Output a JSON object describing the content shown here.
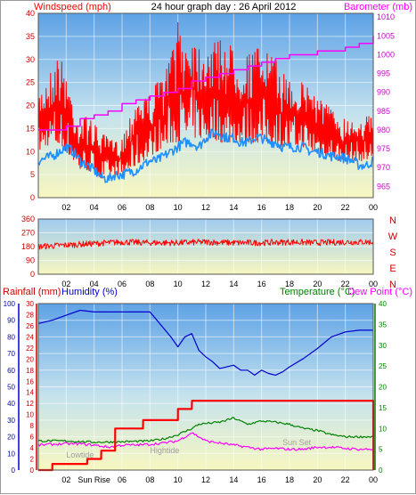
{
  "chart_data": [
    {
      "type": "line",
      "title": "24 hour graph day : 26 April 2012",
      "left_axis_label": "Windspeed (mph)",
      "right_axis_label": "Barometer (mb)",
      "left_ylim": [
        0,
        40
      ],
      "left_ticks": [
        "0",
        "5",
        "10",
        "15",
        "20",
        "25",
        "30",
        "35",
        "40"
      ],
      "right_ylim": [
        962,
        1011
      ],
      "right_ticks": [
        "965",
        "970",
        "975",
        "980",
        "985",
        "990",
        "995",
        "1000",
        "1005",
        "1010"
      ],
      "x_ticks": [
        "02",
        "04",
        "06",
        "08",
        "10",
        "12",
        "14",
        "16",
        "18",
        "20",
        "22",
        "00"
      ],
      "colors": {
        "gust": "#ff0000",
        "average": "#1e90ff",
        "barometer": "#ff00ff"
      },
      "series": {
        "gust_envelope": {
          "x": [
            0.0,
            0.5,
            1.0,
            1.5,
            2.0,
            2.5,
            3.0,
            3.5,
            4.0,
            4.5,
            5.0,
            5.5,
            6.0,
            6.5,
            7.0,
            7.5,
            8.0,
            8.5,
            9.0,
            9.5,
            10.0,
            10.5,
            11.0,
            11.5,
            12.0,
            12.5,
            13.0,
            13.5,
            14.0,
            14.5,
            15.0,
            15.5,
            16.0,
            16.5,
            17.0,
            17.5,
            18.0,
            18.5,
            19.0,
            19.5,
            20.0,
            20.5,
            21.0,
            21.5,
            22.0,
            22.5,
            23.0,
            23.5,
            24.0
          ],
          "low": [
            10,
            11,
            12,
            11,
            10,
            8,
            6,
            6,
            5,
            4,
            4,
            5,
            5,
            6,
            7,
            8,
            9,
            10,
            11,
            12,
            12,
            13,
            13,
            13,
            13,
            13,
            12,
            12,
            12,
            12,
            12,
            12,
            12,
            12,
            12,
            11,
            11,
            11,
            11,
            10,
            10,
            9,
            9,
            8,
            8,
            8,
            8,
            8,
            9
          ],
          "high": [
            22,
            25,
            28,
            31,
            27,
            20,
            16,
            18,
            16,
            14,
            13,
            12,
            13,
            17,
            22,
            22,
            22,
            25,
            26,
            31,
            38,
            33,
            36,
            33,
            33,
            33,
            35,
            33,
            33,
            30,
            31,
            32,
            33,
            31,
            30,
            27,
            26,
            25,
            25,
            24,
            22,
            21,
            19,
            18,
            17,
            17,
            17,
            18,
            17
          ]
        },
        "average": {
          "x": [
            0.0,
            0.5,
            1.0,
            1.5,
            2.0,
            2.5,
            3.0,
            3.5,
            4.0,
            4.5,
            5.0,
            5.5,
            6.0,
            6.5,
            7.0,
            7.5,
            8.0,
            8.5,
            9.0,
            9.5,
            10.0,
            10.5,
            11.0,
            11.5,
            12.0,
            12.5,
            13.0,
            13.5,
            14.0,
            14.5,
            15.0,
            15.5,
            16.0,
            16.5,
            17.0,
            17.5,
            18.0,
            18.5,
            19.0,
            19.5,
            20.0,
            20.5,
            21.0,
            21.5,
            22.0,
            22.5,
            23.0,
            23.5,
            24.0
          ],
          "y": [
            8,
            8.5,
            9,
            10,
            11,
            10,
            8,
            7,
            6,
            4.5,
            4,
            5,
            5,
            5.5,
            6,
            7,
            8,
            8,
            9,
            10,
            11,
            12,
            12,
            11,
            13,
            14,
            14,
            13,
            13,
            12,
            12,
            13,
            13,
            12,
            12,
            11,
            11,
            11,
            11,
            10,
            10,
            9.5,
            9,
            9,
            8.5,
            8,
            7,
            7,
            8
          ]
        },
        "barometer": {
          "x": [
            0,
            1,
            2,
            3,
            4,
            5,
            6,
            7,
            8,
            9,
            10,
            11,
            12,
            13,
            14,
            15,
            16,
            17,
            18,
            19,
            20,
            21,
            22,
            23,
            24
          ],
          "y": [
            980,
            980,
            981,
            983,
            984,
            985,
            987,
            988,
            989,
            990,
            991,
            993,
            994,
            995,
            996,
            997,
            998,
            999,
            1000,
            1000,
            1001,
            1001,
            1002,
            1003,
            1005
          ]
        }
      }
    },
    {
      "type": "line",
      "title": "",
      "series_name": "Wind direction",
      "ylim": [
        0,
        360
      ],
      "y_ticks": [
        "0",
        "90",
        "180",
        "270",
        "360"
      ],
      "compass_labels": [
        "N",
        "W",
        "S",
        "E",
        "N"
      ],
      "x_ticks": [
        "02",
        "04",
        "06",
        "08",
        "10",
        "12",
        "14",
        "16",
        "18",
        "20",
        "22",
        "00"
      ],
      "color": "#ff0000",
      "series": {
        "direction": {
          "x": [
            0,
            2,
            4,
            6,
            8,
            10,
            12,
            14,
            16,
            18,
            20,
            22,
            24
          ],
          "y": [
            180,
            190,
            200,
            210,
            205,
            205,
            210,
            205,
            205,
            210,
            205,
            210,
            210
          ]
        }
      }
    },
    {
      "type": "line",
      "title": "",
      "labels": {
        "rainfall": "Rainfall (mm)",
        "humidity": "Humidity (%)",
        "temperature": "Temperature (°C)",
        "dew_point": "Dew Point (°C)"
      },
      "humidity_ylim": [
        0,
        100
      ],
      "humidity_ticks": [
        "0",
        "10",
        "20",
        "30",
        "40",
        "50",
        "60",
        "70",
        "80",
        "90",
        "100"
      ],
      "rain_ylim": [
        0,
        30
      ],
      "rain_ticks": [
        "0",
        "2",
        "4",
        "6",
        "8",
        "10",
        "12",
        "14",
        "16",
        "18",
        "20",
        "22",
        "24",
        "26",
        "28",
        "30"
      ],
      "temp_ylim": [
        0,
        40
      ],
      "temp_ticks": [
        "0",
        "5",
        "10",
        "15",
        "20",
        "25",
        "30",
        "35",
        "40"
      ],
      "x_ticks": [
        "02",
        "Sun Rise",
        "06",
        "08",
        "10",
        "12",
        "14",
        "16",
        "18",
        "20",
        "22",
        "00"
      ],
      "annotations": [
        "Lowtide",
        "Hightide",
        "Sun Set"
      ],
      "colors": {
        "humidity": "#0000cd",
        "rainfall": "#ff0000",
        "temperature": "#008000",
        "dew_point": "#ff00ff"
      },
      "series": {
        "humidity": {
          "x": [
            0,
            1,
            2,
            3,
            4,
            5,
            6,
            7,
            8,
            8.5,
            9,
            9.5,
            10,
            10.5,
            11,
            11.5,
            12,
            12.5,
            13,
            13.5,
            14,
            14.5,
            15,
            15.5,
            16,
            16.5,
            17,
            17.5,
            18,
            19,
            20,
            21,
            22,
            23,
            24
          ],
          "y": [
            88,
            90,
            93,
            96,
            95,
            95,
            95,
            95,
            95,
            90,
            85,
            80,
            74,
            80,
            82,
            72,
            68,
            65,
            61,
            62,
            63,
            60,
            60,
            57,
            60,
            58,
            57,
            59,
            62,
            67,
            73,
            80,
            83,
            84,
            84
          ]
        },
        "rainfall": {
          "x": [
            0,
            1,
            1.01,
            3.5,
            3.51,
            4.5,
            4.51,
            5.5,
            5.51,
            7.5,
            7.51,
            10,
            10.01,
            11.0,
            11.01,
            24,
            24.01
          ],
          "y": [
            0,
            0,
            1.1,
            1.1,
            2.0,
            2.0,
            3.5,
            3.5,
            7.5,
            7.5,
            9.0,
            9.0,
            11.0,
            11.0,
            12.5,
            12.5,
            0
          ]
        },
        "temperature": {
          "x": [
            0,
            2,
            4,
            6,
            8,
            9,
            10,
            11,
            11.5,
            12,
            13,
            14,
            15,
            16,
            17,
            18,
            19,
            20,
            21,
            22,
            23,
            24
          ],
          "y": [
            7.0,
            7.0,
            6.7,
            6.8,
            7.0,
            7.5,
            8.5,
            10,
            11,
            11.2,
            11.5,
            12.5,
            11,
            11.8,
            11.5,
            11,
            10,
            9.5,
            8.5,
            8.0,
            8.0,
            8.0
          ]
        },
        "dew_point": {
          "x": [
            0,
            1,
            2,
            3,
            4,
            5,
            6,
            7,
            8,
            9,
            10,
            10.5,
            11,
            11.5,
            12,
            13,
            14,
            15,
            16,
            17,
            18,
            19,
            20,
            21,
            22,
            23,
            24
          ],
          "y": [
            6.0,
            6.2,
            6.3,
            6.3,
            6.0,
            5.5,
            6.0,
            6.0,
            6.2,
            6.5,
            7.0,
            8.0,
            9.0,
            8.0,
            7.0,
            6.5,
            6.0,
            5.5,
            5.0,
            5.2,
            5.0,
            5.0,
            5.5,
            5.5,
            5.2,
            5.0,
            5.0
          ]
        }
      }
    }
  ]
}
